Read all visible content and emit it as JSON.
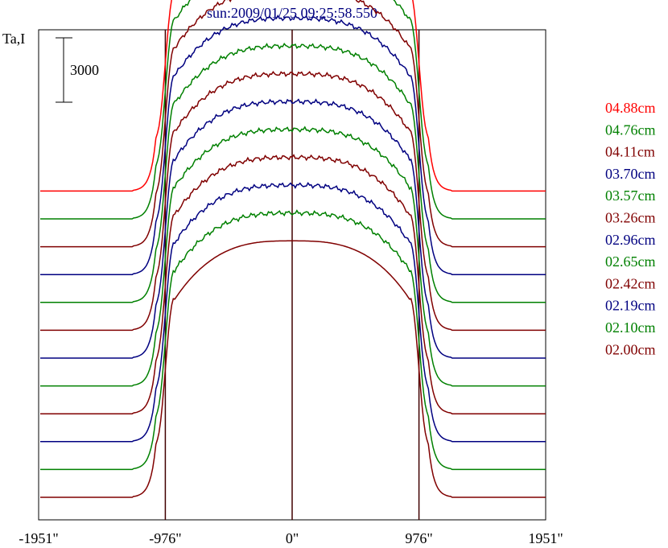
{
  "chart_data": {
    "type": "line",
    "title": "sun:2009/01/25 09:25:58.550",
    "ylabel": "Ta,I",
    "scale_bar_label": "3000",
    "scale_bar_value": 3000,
    "x_ticks": [
      -1951,
      -976,
      0,
      976,
      1951
    ],
    "x_tick_labels": [
      "-1951\"",
      "-976\"",
      "0\"",
      "976\"",
      "1951\""
    ],
    "xlim": [
      -1951,
      1951
    ],
    "vertical_markers": [
      -976,
      0,
      976
    ],
    "grid": false,
    "legend_position": "right",
    "profile_shape": {
      "disk_radius": 976,
      "limb_half_width": 70,
      "shoulder_extent": 1220
    },
    "series": [
      {
        "name": "04.88cm",
        "color": "#ff0000",
        "baseline": 0,
        "disk_level": 11950,
        "limb_brightening": 0.02,
        "noise": 1
      },
      {
        "name": "04.76cm",
        "color": "#008000",
        "baseline": 0,
        "disk_level": 11950,
        "limb_brightening": 0.02,
        "noise": 1
      },
      {
        "name": "04.11cm",
        "color": "#800000",
        "baseline": 0,
        "disk_level": 11950,
        "limb_brightening": 0.02,
        "noise": 1
      },
      {
        "name": "03.70cm",
        "color": "#000080",
        "baseline": 0,
        "disk_level": 11950,
        "limb_brightening": 0.02,
        "noise": 1
      },
      {
        "name": "03.57cm",
        "color": "#008000",
        "baseline": 0,
        "disk_level": 11950,
        "limb_brightening": 0.02,
        "noise": 1
      },
      {
        "name": "03.26cm",
        "color": "#800000",
        "baseline": 0,
        "disk_level": 11950,
        "limb_brightening": 0.02,
        "noise": 1
      },
      {
        "name": "02.96cm",
        "color": "#000080",
        "baseline": 0,
        "disk_level": 11950,
        "limb_brightening": 0.02,
        "noise": 1
      },
      {
        "name": "02.65cm",
        "color": "#008000",
        "baseline": 0,
        "disk_level": 11950,
        "limb_brightening": 0.02,
        "noise": 1
      },
      {
        "name": "02.42cm",
        "color": "#800000",
        "baseline": 0,
        "disk_level": 11950,
        "limb_brightening": 0.02,
        "noise": 1
      },
      {
        "name": "02.19cm",
        "color": "#000080",
        "baseline": 0,
        "disk_level": 11950,
        "limb_brightening": 0.02,
        "noise": 1
      },
      {
        "name": "02.10cm",
        "color": "#008000",
        "baseline": 0,
        "disk_level": 11950,
        "limb_brightening": 0.02,
        "noise": 1
      },
      {
        "name": "02.00cm",
        "color": "#800000",
        "baseline": 0,
        "disk_level": 11950,
        "limb_brightening": 0.0,
        "noise": 0
      }
    ]
  }
}
